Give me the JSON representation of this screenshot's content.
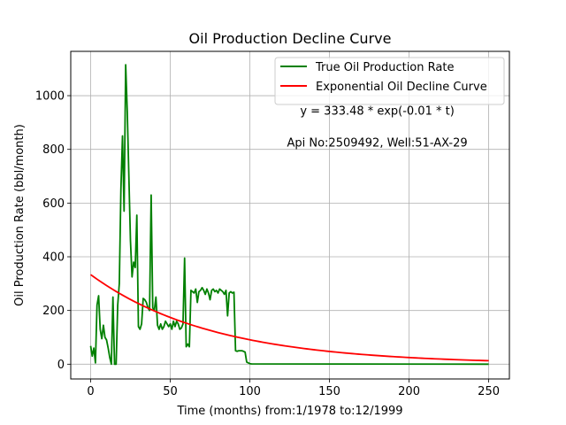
{
  "chart_data": {
    "type": "line",
    "title": "Oil Production Decline Curve",
    "xlabel": "Time (months) from:1/1978 to:12/1999",
    "ylabel": "Oil Production Rate (bbl/month)",
    "xlim": [
      -12.5,
      263
    ],
    "ylim": [
      -55,
      1165
    ],
    "xticks": [
      0,
      50,
      100,
      150,
      200,
      250
    ],
    "yticks": [
      0,
      200,
      400,
      600,
      800,
      1000
    ],
    "grid": true,
    "legend_position": "top-right",
    "annotations": [
      {
        "text": "y = 333.48 * exp(-0.01 * t)",
        "x": 180,
        "y": 930
      },
      {
        "text": "Api No:2509492, Well:51-AX-29",
        "x": 180,
        "y": 810
      }
    ],
    "series": [
      {
        "name": "True Oil Production Rate",
        "color": "#008000",
        "x": [
          0,
          1,
          2,
          3,
          4,
          5,
          6,
          7,
          8,
          9,
          10,
          11,
          12,
          13,
          14,
          15,
          16,
          17,
          18,
          19,
          20,
          21,
          22,
          23,
          24,
          25,
          26,
          27,
          28,
          29,
          30,
          31,
          32,
          33,
          34,
          35,
          36,
          37,
          38,
          39,
          40,
          41,
          42,
          43,
          44,
          45,
          46,
          47,
          48,
          49,
          50,
          51,
          52,
          53,
          54,
          55,
          56,
          57,
          58,
          59,
          60,
          61,
          62,
          63,
          64,
          65,
          66,
          67,
          68,
          69,
          70,
          71,
          72,
          73,
          74,
          75,
          76,
          77,
          78,
          79,
          80,
          81,
          82,
          83,
          84,
          85,
          86,
          87,
          88,
          89,
          90,
          91,
          92,
          93,
          94,
          95,
          96,
          97,
          98,
          99,
          100,
          101,
          250
        ],
        "values": [
          68,
          30,
          60,
          5,
          220,
          255,
          130,
          95,
          145,
          100,
          90,
          60,
          25,
          0,
          250,
          0,
          0,
          220,
          300,
          650,
          850,
          570,
          1115,
          940,
          700,
          460,
          325,
          380,
          360,
          555,
          140,
          130,
          150,
          245,
          240,
          230,
          210,
          200,
          630,
          210,
          200,
          250,
          145,
          130,
          150,
          130,
          140,
          160,
          150,
          140,
          150,
          130,
          160,
          140,
          160,
          150,
          130,
          135,
          150,
          395,
          65,
          75,
          65,
          275,
          270,
          265,
          280,
          230,
          270,
          275,
          285,
          275,
          260,
          280,
          265,
          240,
          275,
          280,
          270,
          275,
          265,
          280,
          275,
          270,
          260,
          275,
          180,
          265,
          270,
          265,
          268,
          50,
          48,
          50,
          50,
          50,
          48,
          45,
          8,
          5,
          2,
          1,
          0
        ]
      },
      {
        "name": "Exponential Oil Decline Curve",
        "color": "#ff0000",
        "model": {
          "a": 333.48,
          "k": 0.013,
          "x_start": 0,
          "x_end": 250
        }
      }
    ]
  }
}
